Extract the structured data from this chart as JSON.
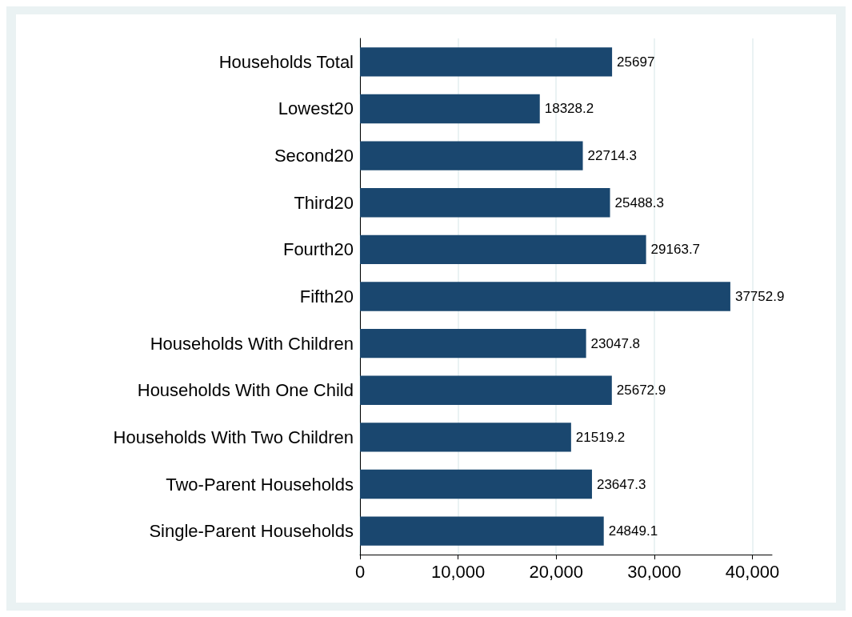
{
  "chart_data": {
    "type": "bar",
    "orientation": "horizontal",
    "categories": [
      "Households Total",
      "Lowest20",
      "Second20",
      "Third20",
      "Fourth20",
      "Fifth20",
      "Households With Children",
      "Households With One Child",
      "Households With Two Children",
      "Two-Parent Households",
      "Single-Parent Households"
    ],
    "values": [
      25697,
      18328.2,
      22714.3,
      25488.3,
      29163.7,
      37752.9,
      23047.8,
      25672.9,
      21519.2,
      23647.3,
      24849.1
    ],
    "color": "#1a476f",
    "data_labels": true,
    "grid": "x",
    "xlim": [
      0,
      42000
    ],
    "xticks": [
      0,
      {
        "value": 10000,
        "label": "10,000"
      },
      {
        "value": 20000,
        "label": "20,000"
      },
      {
        "value": 30000,
        "label": "30,000"
      },
      {
        "value": 40000,
        "label": "40,000"
      }
    ]
  }
}
